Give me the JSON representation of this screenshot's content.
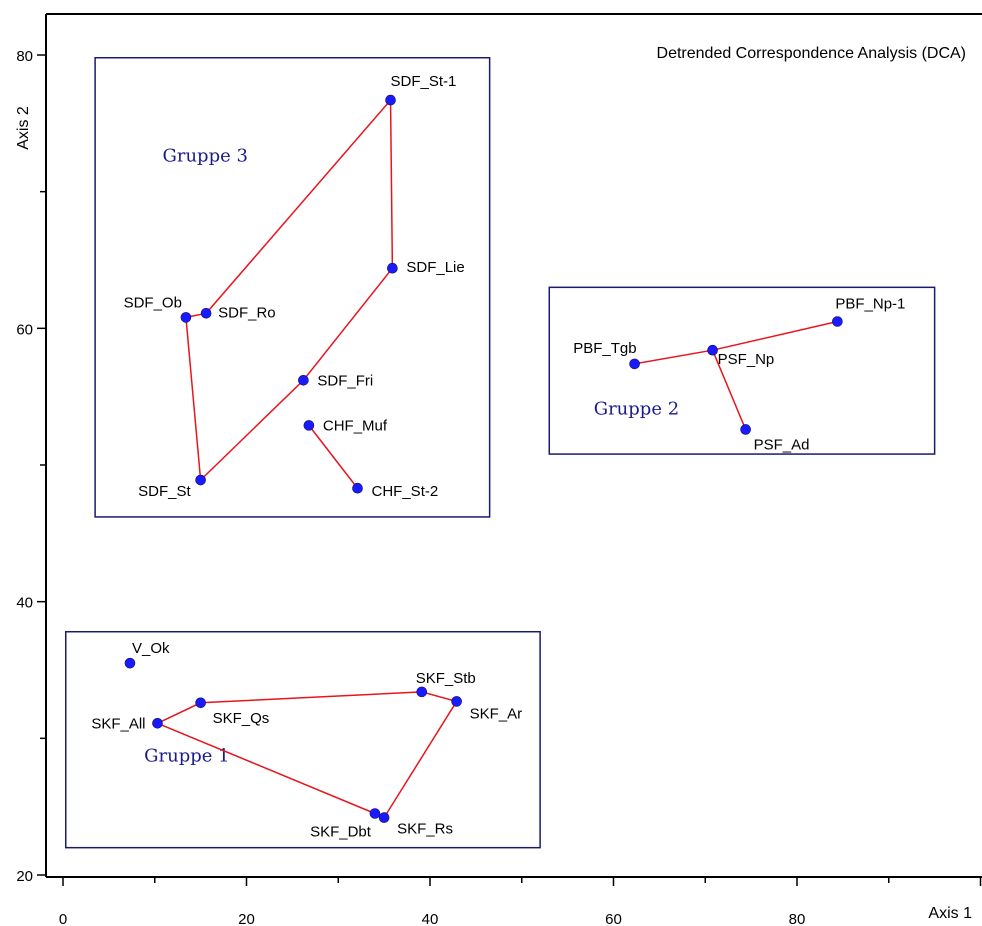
{
  "chart_data": {
    "type": "scatter",
    "title": "Detrended Correspondence Analysis (DCA)",
    "xlabel": "Axis 1",
    "ylabel": "Axis 2",
    "xlim": [
      -0.5,
      100
    ],
    "ylim": [
      19,
      83.5
    ],
    "x_ticks": [
      "0",
      "20",
      "40",
      "60",
      "80"
    ],
    "y_ticks": [
      "20",
      "40",
      "60",
      "80"
    ],
    "grid": false,
    "legend": "none",
    "colors": {
      "point": "#1a1aff",
      "line": "#e8141e",
      "group_box": "#1a1a6e",
      "group_label": "#1a1a8c"
    },
    "points": [
      {
        "label": "SDF_St-1",
        "x": 35.7,
        "y": 76.7
      },
      {
        "label": "SDF_Lie",
        "x": 35.9,
        "y": 64.4
      },
      {
        "label": "SDF_Ob",
        "x": 13.4,
        "y": 60.8
      },
      {
        "label": "SDF_Ro",
        "x": 15.6,
        "y": 61.1
      },
      {
        "label": "SDF_Fri",
        "x": 26.2,
        "y": 56.2
      },
      {
        "label": "CHF_Muf",
        "x": 26.8,
        "y": 52.9
      },
      {
        "label": "SDF_St",
        "x": 15.0,
        "y": 48.9
      },
      {
        "label": "CHF_St-2",
        "x": 32.1,
        "y": 48.3
      },
      {
        "label": "PBF_Np-1",
        "x": 84.4,
        "y": 60.5
      },
      {
        "label": "PBF_Tgb",
        "x": 62.3,
        "y": 57.4
      },
      {
        "label": "PSF_Np",
        "x": 70.8,
        "y": 58.4
      },
      {
        "label": "PSF_Ad",
        "x": 74.4,
        "y": 52.6
      },
      {
        "label": "V_Ok",
        "x": 7.3,
        "y": 35.5
      },
      {
        "label": "SKF_Stb",
        "x": 39.1,
        "y": 33.4
      },
      {
        "label": "SKF_Ar",
        "x": 42.9,
        "y": 32.7
      },
      {
        "label": "SKF_Qs",
        "x": 15.0,
        "y": 32.6
      },
      {
        "label": "SKF_All",
        "x": 10.3,
        "y": 31.1
      },
      {
        "label": "SKF_Dbt",
        "x": 34.0,
        "y": 24.5
      },
      {
        "label": "SKF_Rs",
        "x": 35.0,
        "y": 24.2
      }
    ],
    "hulls": [
      [
        "SDF_St-1",
        "SDF_Lie",
        "SDF_Fri",
        "SDF_St",
        "SDF_Ob",
        "SDF_Ro",
        "SDF_St-1"
      ],
      [
        "CHF_Muf",
        "CHF_St-2"
      ],
      [
        "PBF_Tgb",
        "PSF_Np",
        "PBF_Np-1"
      ],
      [
        "PSF_Np",
        "PSF_Ad"
      ],
      [
        "SKF_All",
        "SKF_Qs",
        "SKF_Stb",
        "SKF_Ar",
        "SKF_Rs",
        "SKF_Dbt",
        "SKF_All"
      ]
    ],
    "groups": [
      {
        "name": "Gruppe 3",
        "x_range": [
          3.5,
          46.5
        ],
        "y_range": [
          46.2,
          79.8
        ],
        "label_at": [
          15.5,
          72.2
        ]
      },
      {
        "name": "Gruppe 2",
        "x_range": [
          53.0,
          95.0
        ],
        "y_range": [
          50.8,
          63.0
        ],
        "label_at": [
          62.5,
          53.7
        ]
      },
      {
        "name": "Gruppe 1",
        "x_range": [
          0.3,
          52.0
        ],
        "y_range": [
          22.0,
          37.8
        ],
        "label_at": [
          13.5,
          28.3
        ]
      }
    ]
  }
}
